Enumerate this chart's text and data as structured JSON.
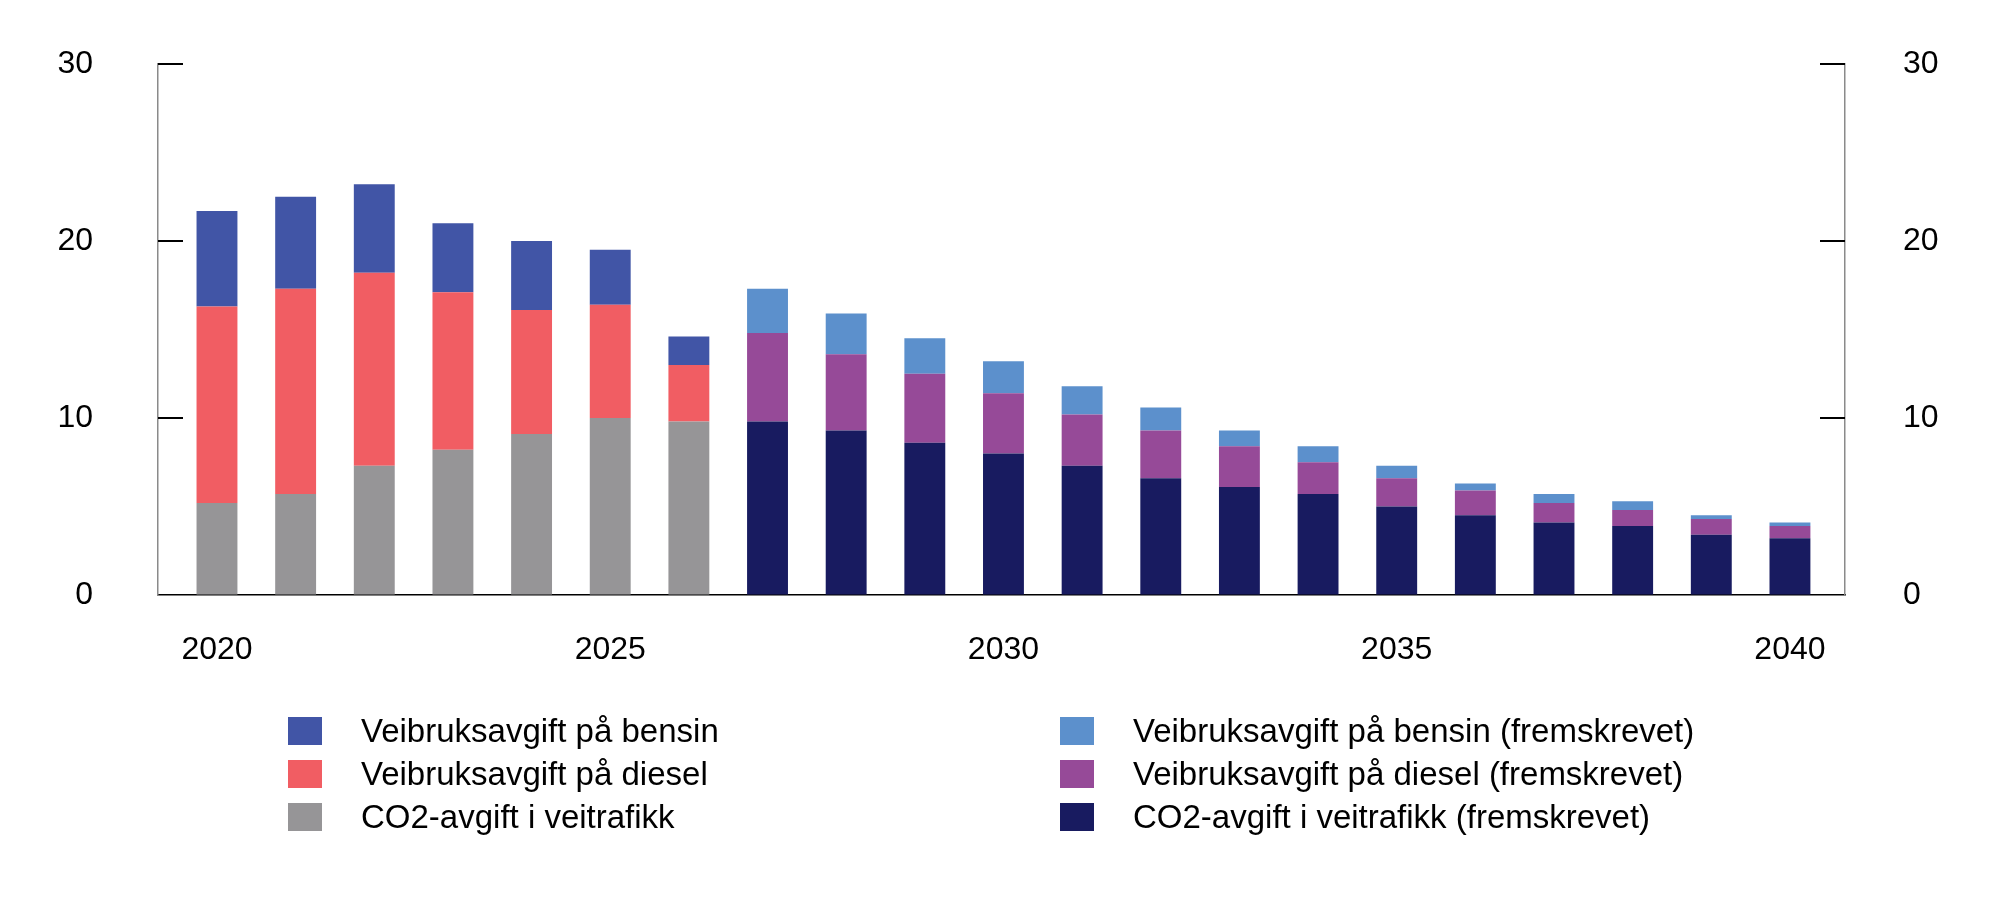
{
  "chart_data": {
    "type": "bar",
    "stacked": true,
    "categories": [
      "2020",
      null,
      null,
      null,
      null,
      "2025",
      null,
      null,
      null,
      null,
      "2030",
      null,
      null,
      null,
      null,
      "2035",
      null,
      null,
      null,
      null,
      "2040"
    ],
    "series": [
      {
        "name": "CO2-avgift i veitrafikk",
        "color": "#969597",
        "values": [
          5.2,
          5.7,
          7.3,
          8.2,
          9.1,
          10.0,
          9.8,
          null,
          null,
          null,
          null,
          null,
          null,
          null,
          null,
          null,
          null,
          null,
          null,
          null,
          null
        ]
      },
      {
        "name": "Veibruksavgift på diesel",
        "color": "#f15d63",
        "values": [
          11.1,
          11.6,
          10.9,
          8.9,
          7.0,
          6.4,
          3.2,
          null,
          null,
          null,
          null,
          null,
          null,
          null,
          null,
          null,
          null,
          null,
          null,
          null,
          null
        ]
      },
      {
        "name": "Veibruksavgift på bensin",
        "color": "#4155a6",
        "values": [
          5.4,
          5.2,
          5.0,
          3.9,
          3.9,
          3.1,
          1.6,
          null,
          null,
          null,
          null,
          null,
          null,
          null,
          null,
          null,
          null,
          null,
          null,
          null,
          null
        ]
      },
      {
        "name": "CO2-avgift i veitrafikk (fremskrevet)",
        "color": "#181b60",
        "values": [
          null,
          null,
          null,
          null,
          null,
          null,
          null,
          9.8,
          9.3,
          8.6,
          8.0,
          7.3,
          6.6,
          6.1,
          5.7,
          5.0,
          4.5,
          4.1,
          3.9,
          3.4,
          3.2
        ]
      },
      {
        "name": "Veibruksavgift på diesel (fremskrevet)",
        "color": "#964a98",
        "values": [
          null,
          null,
          null,
          null,
          null,
          null,
          null,
          5.0,
          4.3,
          3.9,
          3.4,
          2.9,
          2.7,
          2.3,
          1.8,
          1.6,
          1.4,
          1.1,
          0.9,
          0.9,
          0.7
        ]
      },
      {
        "name": "Veibruksavgift på bensin (fremskrevet)",
        "color": "#5c90cc",
        "values": [
          null,
          null,
          null,
          null,
          null,
          null,
          null,
          2.5,
          2.3,
          2.0,
          1.8,
          1.6,
          1.3,
          0.9,
          0.9,
          0.7,
          0.4,
          0.5,
          0.5,
          0.2,
          0.2
        ]
      }
    ],
    "ylim": [
      0,
      30
    ],
    "yticks": [
      0,
      10,
      20,
      30
    ],
    "y2lim": [
      0,
      30
    ],
    "y2ticks": [
      0,
      10,
      20,
      30
    ],
    "legend": "bottom"
  }
}
